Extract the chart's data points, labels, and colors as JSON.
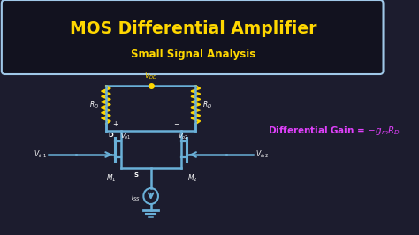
{
  "bg_color": "#1c1c2e",
  "title": "MOS Differential Amplifier",
  "subtitle": "Small Signal Analysis",
  "title_color": "#FFD700",
  "subtitle_color": "#FFD700",
  "circuit_color": "#6ab0d8",
  "label_color": "#FFFFFF",
  "gain_color": "#e040fb",
  "box_border_color": "#a0c8e8",
  "box_face_color": "#12121f",
  "resistor_color": "#FFD700",
  "vdd_color": "#FFD700",
  "label_fontsize": 5.5,
  "title_fontsize": 13.5,
  "subtitle_fontsize": 8.5,
  "gain_fontsize": 7.5
}
